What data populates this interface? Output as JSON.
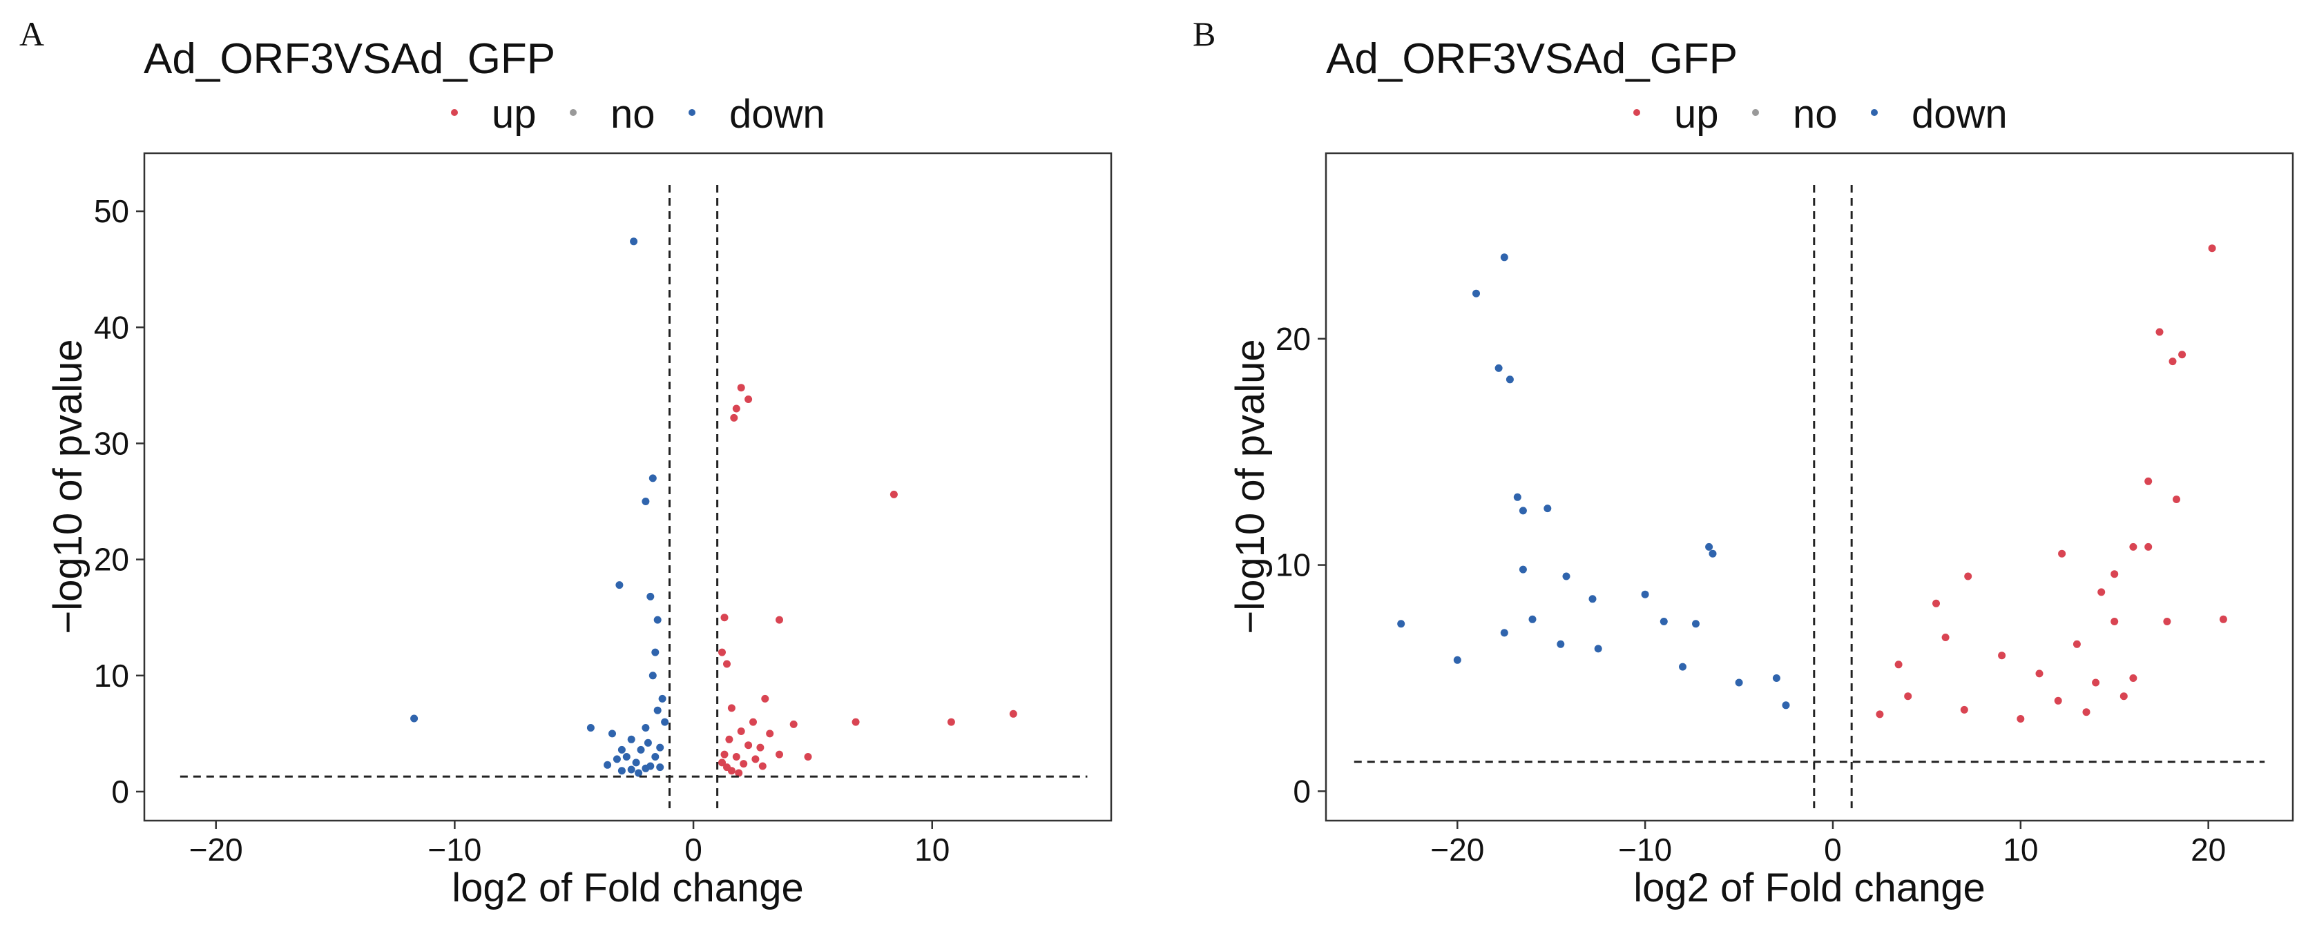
{
  "chart_data": [
    {
      "panel": "A",
      "type": "scatter",
      "title": "Ad_ORF3VSAd_GFP",
      "xlabel": "log2 of Fold change",
      "ylabel": "−log10 of pvalue",
      "xlim": [
        -23,
        17.5
      ],
      "ylim": [
        -2.5,
        55
      ],
      "x_ticks": [
        -20,
        -10,
        0,
        10
      ],
      "x_tick_labels": [
        "−20",
        "−10",
        "0",
        "10"
      ],
      "y_ticks": [
        0,
        10,
        20,
        30,
        40,
        50
      ],
      "y_tick_labels": [
        "0",
        "10",
        "20",
        "30",
        "40",
        "50"
      ],
      "grid": false,
      "legend": {
        "position": "top",
        "entries": [
          "up",
          "no",
          "down"
        ]
      },
      "thresholds": {
        "x": [
          -1,
          1
        ],
        "y": 1.3,
        "hline_extent": [
          -21.5,
          16.5
        ]
      },
      "series": [
        {
          "name": "up",
          "color": "#d94452",
          "points": [
            [
              2.0,
              34.8
            ],
            [
              2.3,
              33.8
            ],
            [
              1.8,
              33.0
            ],
            [
              1.7,
              32.2
            ],
            [
              8.4,
              25.6
            ],
            [
              1.3,
              15.0
            ],
            [
              3.6,
              14.8
            ],
            [
              1.2,
              12.0
            ],
            [
              1.4,
              11.0
            ],
            [
              3.0,
              8.0
            ],
            [
              1.6,
              7.2
            ],
            [
              6.8,
              6.0
            ],
            [
              10.8,
              6.0
            ],
            [
              13.4,
              6.7
            ],
            [
              2.5,
              6.0
            ],
            [
              2.0,
              5.2
            ],
            [
              3.2,
              5.0
            ],
            [
              4.2,
              5.8
            ],
            [
              1.5,
              4.5
            ],
            [
              2.3,
              4.0
            ],
            [
              2.8,
              3.8
            ],
            [
              1.3,
              3.2
            ],
            [
              1.8,
              3.0
            ],
            [
              1.2,
              2.5
            ],
            [
              3.6,
              3.2
            ],
            [
              2.6,
              2.8
            ],
            [
              1.4,
              2.1
            ],
            [
              2.1,
              2.4
            ],
            [
              1.6,
              1.8
            ],
            [
              1.9,
              1.6
            ],
            [
              4.8,
              3.0
            ],
            [
              2.9,
              2.2
            ]
          ]
        },
        {
          "name": "no",
          "color": "#999999",
          "points": []
        },
        {
          "name": "down",
          "color": "#2f64ad",
          "points": [
            [
              -2.5,
              47.4
            ],
            [
              -1.7,
              27.0
            ],
            [
              -2.0,
              25.0
            ],
            [
              -3.1,
              17.8
            ],
            [
              -1.8,
              16.8
            ],
            [
              -1.5,
              14.8
            ],
            [
              -1.6,
              12.0
            ],
            [
              -1.7,
              10.0
            ],
            [
              -1.3,
              8.0
            ],
            [
              -11.7,
              6.3
            ],
            [
              -1.5,
              7.0
            ],
            [
              -1.2,
              6.0
            ],
            [
              -2.0,
              5.5
            ],
            [
              -3.4,
              5.0
            ],
            [
              -2.6,
              4.5
            ],
            [
              -4.3,
              5.5
            ],
            [
              -1.9,
              4.2
            ],
            [
              -1.4,
              3.8
            ],
            [
              -2.2,
              3.6
            ],
            [
              -3.0,
              3.6
            ],
            [
              -1.6,
              3.0
            ],
            [
              -2.8,
              3.0
            ],
            [
              -2.4,
              2.5
            ],
            [
              -3.2,
              2.8
            ],
            [
              -1.8,
              2.2
            ],
            [
              -1.4,
              2.1
            ],
            [
              -2.0,
              2.0
            ],
            [
              -3.6,
              2.3
            ],
            [
              -2.6,
              1.9
            ],
            [
              -3.0,
              1.8
            ],
            [
              -2.3,
              1.6
            ]
          ]
        }
      ]
    },
    {
      "panel": "B",
      "type": "scatter",
      "title": "Ad_ORF3VSAd_GFP",
      "xlabel": "log2 of Fold change",
      "ylabel": "−log10 of pvalue",
      "xlim": [
        -27,
        24.5
      ],
      "ylim": [
        -1.3,
        28.2
      ],
      "x_ticks": [
        -20,
        -10,
        0,
        10,
        20
      ],
      "x_tick_labels": [
        "−20",
        "−10",
        "0",
        "10",
        "20"
      ],
      "y_ticks": [
        0,
        10,
        20
      ],
      "y_tick_labels": [
        "0",
        "10",
        "20"
      ],
      "grid": false,
      "legend": {
        "position": "top",
        "entries": [
          "up",
          "no",
          "down"
        ]
      },
      "thresholds": {
        "x": [
          -1,
          1
        ],
        "y": 1.3,
        "hline_extent": [
          -25.5,
          23
        ]
      },
      "series": [
        {
          "name": "up",
          "color": "#d94452",
          "points": [
            [
              20.2,
              24.0
            ],
            [
              17.4,
              20.3
            ],
            [
              18.1,
              19.0
            ],
            [
              18.6,
              19.3
            ],
            [
              16.8,
              13.7
            ],
            [
              18.3,
              12.9
            ],
            [
              12.2,
              10.5
            ],
            [
              16.0,
              10.8
            ],
            [
              16.8,
              10.8
            ],
            [
              15.0,
              9.6
            ],
            [
              7.2,
              9.5
            ],
            [
              14.3,
              8.8
            ],
            [
              20.8,
              7.6
            ],
            [
              17.8,
              7.5
            ],
            [
              5.5,
              8.3
            ],
            [
              15.0,
              7.5
            ],
            [
              6.0,
              6.8
            ],
            [
              13.0,
              6.5
            ],
            [
              9.0,
              6.0
            ],
            [
              11.0,
              5.2
            ],
            [
              3.5,
              5.6
            ],
            [
              14.0,
              4.8
            ],
            [
              16.0,
              5.0
            ],
            [
              12.0,
              4.0
            ],
            [
              4.0,
              4.2
            ],
            [
              2.5,
              3.4
            ],
            [
              7.0,
              3.6
            ],
            [
              10.0,
              3.2
            ],
            [
              13.5,
              3.5
            ],
            [
              15.5,
              4.2
            ]
          ]
        },
        {
          "name": "no",
          "color": "#999999",
          "points": []
        },
        {
          "name": "down",
          "color": "#2f64ad",
          "points": [
            [
              -17.5,
              23.6
            ],
            [
              -19.0,
              22.0
            ],
            [
              -17.8,
              18.7
            ],
            [
              -17.2,
              18.2
            ],
            [
              -16.8,
              13.0
            ],
            [
              -16.5,
              12.4
            ],
            [
              -15.2,
              12.5
            ],
            [
              -6.6,
              10.8
            ],
            [
              -6.4,
              10.5
            ],
            [
              -16.5,
              9.8
            ],
            [
              -14.2,
              9.5
            ],
            [
              -12.8,
              8.5
            ],
            [
              -23.0,
              7.4
            ],
            [
              -16.0,
              7.6
            ],
            [
              -10.0,
              8.7
            ],
            [
              -17.5,
              7.0
            ],
            [
              -9.0,
              7.5
            ],
            [
              -7.3,
              7.4
            ],
            [
              -20.0,
              5.8
            ],
            [
              -3.0,
              5.0
            ],
            [
              -12.5,
              6.3
            ],
            [
              -14.5,
              6.5
            ],
            [
              -8.0,
              5.5
            ],
            [
              -2.5,
              3.8
            ],
            [
              -5.0,
              4.8
            ]
          ]
        }
      ]
    }
  ]
}
